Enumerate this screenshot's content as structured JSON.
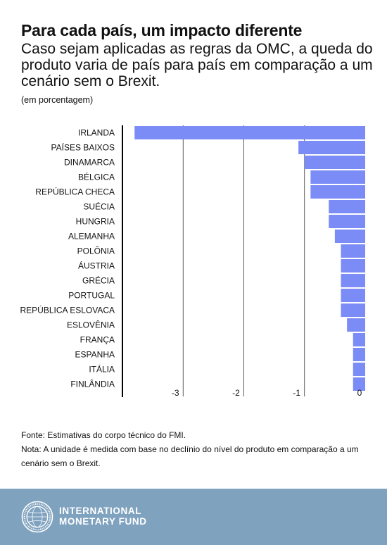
{
  "header": {
    "title": "Para cada país, um impacto diferente",
    "subtitle": "Caso sejam aplicadas as regras da OMC, a queda do produto varia de país para país em comparação a um cenário sem o Brexit.",
    "unit": "(em porcentagem)"
  },
  "chart_data": {
    "type": "bar",
    "orientation": "horizontal",
    "categories": [
      "IRLANDA",
      "PAÍSES BAIXOS",
      "DINAMARCA",
      "BÉLGICA",
      "REPÚBLICA CHECA",
      "SUÉCIA",
      "HUNGRIA",
      "ALEMANHA",
      "POLÔNIA",
      "ÁUSTRIA",
      "GRÉCIA",
      "PORTUGAL",
      "REPÚBLICA ESLOVACA",
      "ESLOVÊNIA",
      "FRANÇA",
      "ESPANHA",
      "ITÁLIA",
      "FINLÂNDIA"
    ],
    "values": [
      -3.8,
      -1.1,
      -1.0,
      -0.9,
      -0.9,
      -0.6,
      -0.6,
      -0.5,
      -0.4,
      -0.4,
      -0.4,
      -0.4,
      -0.4,
      -0.3,
      -0.2,
      -0.2,
      -0.2,
      -0.2
    ],
    "xlim": [
      -4,
      0
    ],
    "x_ticks": [
      -3,
      -2,
      -1,
      0
    ],
    "x_tick_labels": [
      "-3",
      "-2",
      "-1",
      "0"
    ],
    "grid": "vertical",
    "bar_color": "#7b8cf7"
  },
  "footer": {
    "source": "Fonte: Estimativas do corpo técnico do FMI.",
    "note": "Nota: A unidade é medida com base no declínio do nível do produto em comparação a um cenário sem o Brexit."
  },
  "brand": {
    "name_line1": "INTERNATIONAL",
    "name_line2": "MONETARY FUND",
    "seal_text": "INTERNATIONAL MONETARY FUND",
    "band_color": "#7fa2bf"
  }
}
